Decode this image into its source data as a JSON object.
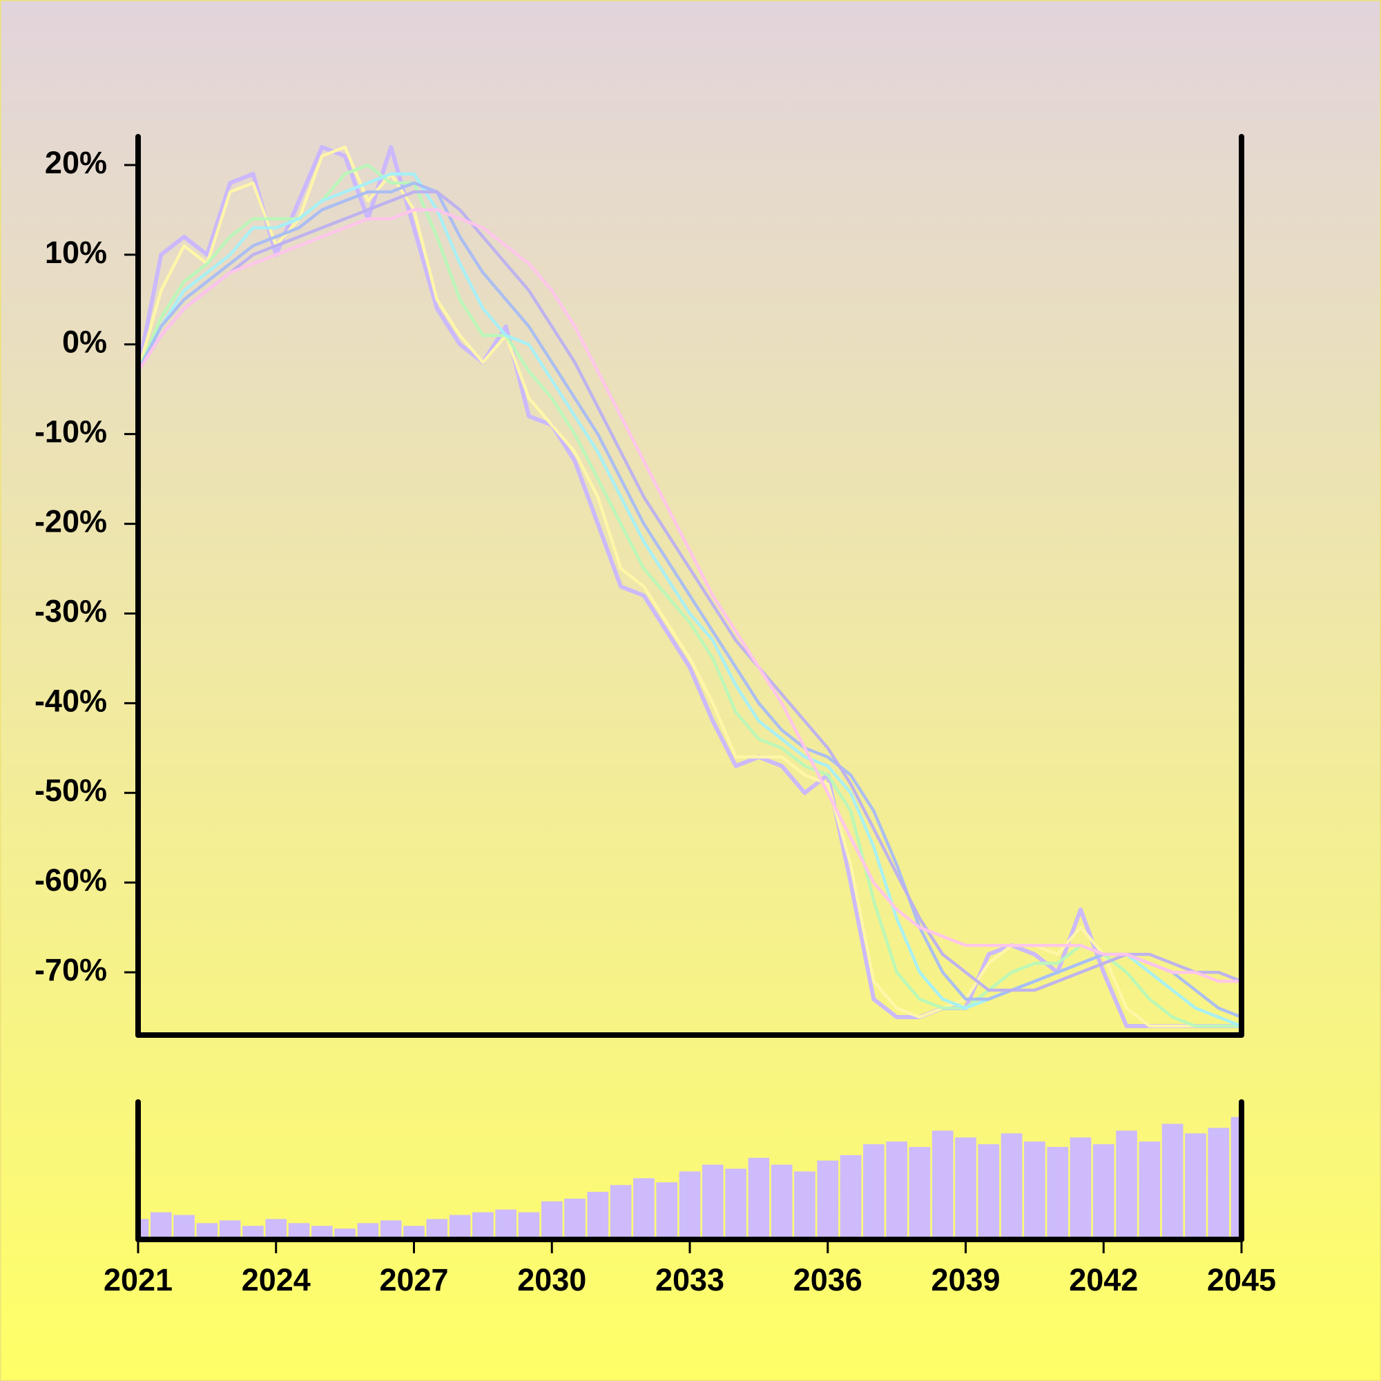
{
  "chart_data": [
    {
      "type": "line",
      "x": [
        2021,
        2021.5,
        2022,
        2022.5,
        2023,
        2023.5,
        2024,
        2024.5,
        2025,
        2025.5,
        2026,
        2026.5,
        2027,
        2027.5,
        2028,
        2028.5,
        2029,
        2029.5,
        2030,
        2030.5,
        2031,
        2031.5,
        2032,
        2032.5,
        2033,
        2033.5,
        2034,
        2034.5,
        2035,
        2035.5,
        2036,
        2036.5,
        2037,
        2037.5,
        2038,
        2038.5,
        2039,
        2039.5,
        2040,
        2040.5,
        2041,
        2041.5,
        2042,
        2042.5,
        2043,
        2043.5,
        2044,
        2044.5,
        2045
      ],
      "xlim": [
        2021,
        2045
      ],
      "ylim": [
        -77,
        23
      ],
      "yticks": [
        {
          "value": 20,
          "label": "20%"
        },
        {
          "value": 10,
          "label": "10%"
        },
        {
          "value": 0,
          "label": "0%"
        },
        {
          "value": -10,
          "label": "-10%"
        },
        {
          "value": -20,
          "label": "-20%"
        },
        {
          "value": -30,
          "label": "-30%"
        },
        {
          "value": -40,
          "label": "-40%"
        },
        {
          "value": -50,
          "label": "-50%"
        },
        {
          "value": -60,
          "label": "-60%"
        },
        {
          "value": -70,
          "label": "-70%"
        }
      ],
      "series": [
        {
          "color": "#c9b6ff",
          "values": [
            -3,
            10,
            12,
            10,
            18,
            19,
            10,
            16,
            22,
            21,
            14,
            22,
            13,
            4,
            0,
            -2,
            2,
            -8,
            -9,
            -13,
            -20,
            -27,
            -28,
            -32,
            -36,
            -42,
            -47,
            -46,
            -47,
            -50,
            -48,
            -60,
            -73,
            -75,
            -75,
            -74,
            -74,
            -68,
            -67,
            -68,
            -70,
            -63,
            -70,
            -76,
            -76,
            -76,
            -76,
            -76,
            -76
          ]
        },
        {
          "color": "#fff7a8",
          "values": [
            -3,
            6,
            11,
            9,
            17,
            18,
            11,
            14,
            21,
            22,
            16,
            19,
            15,
            5,
            1,
            -2,
            1,
            -6,
            -9,
            -12,
            -17,
            -25,
            -27,
            -31,
            -35,
            -40,
            -46,
            -46,
            -46,
            -48,
            -49,
            -58,
            -71,
            -74,
            -75,
            -74,
            -73,
            -69,
            -67,
            -67,
            -68,
            -65,
            -68,
            -74,
            -76,
            -76,
            -76,
            -76,
            -76
          ]
        },
        {
          "color": "#b8f8b8",
          "values": [
            -3,
            3,
            7,
            9,
            12,
            14,
            14,
            14,
            16,
            19,
            20,
            18,
            18,
            12,
            5,
            1,
            1,
            -3,
            -6,
            -10,
            -15,
            -20,
            -25,
            -28,
            -31,
            -35,
            -41,
            -44,
            -45,
            -47,
            -48,
            -52,
            -62,
            -70,
            -73,
            -74,
            -74,
            -72,
            -70,
            -69,
            -69,
            -67,
            -68,
            -70,
            -73,
            -75,
            -76,
            -76,
            -76
          ]
        },
        {
          "color": "#a4f0f8",
          "values": [
            -3,
            2,
            6,
            8,
            10,
            13,
            13,
            14,
            16,
            17,
            18,
            19,
            19,
            15,
            9,
            4,
            1,
            0,
            -4,
            -8,
            -12,
            -17,
            -22,
            -26,
            -30,
            -33,
            -38,
            -42,
            -44,
            -46,
            -47,
            -50,
            -56,
            -64,
            -70,
            -73,
            -74,
            -73,
            -72,
            -71,
            -70,
            -69,
            -68,
            -68,
            -70,
            -72,
            -74,
            -75,
            -76
          ]
        },
        {
          "color": "#a8bcf4",
          "values": [
            -3,
            2,
            5,
            7,
            9,
            11,
            12,
            13,
            15,
            16,
            17,
            17,
            18,
            17,
            12,
            8,
            5,
            2,
            -2,
            -6,
            -10,
            -15,
            -20,
            -24,
            -28,
            -32,
            -36,
            -40,
            -43,
            -45,
            -46,
            -48,
            -52,
            -58,
            -65,
            -70,
            -73,
            -73,
            -72,
            -71,
            -70,
            -69,
            -68,
            -68,
            -69,
            -70,
            -72,
            -74,
            -75
          ]
        },
        {
          "color": "#bcb0f0",
          "values": [
            -3,
            1,
            4,
            6,
            8,
            10,
            11,
            12,
            13,
            14,
            15,
            16,
            17,
            17,
            15,
            12,
            9,
            6,
            2,
            -2,
            -7,
            -12,
            -17,
            -21,
            -25,
            -29,
            -33,
            -36,
            -39,
            -42,
            -45,
            -49,
            -54,
            -59,
            -64,
            -68,
            -70,
            -72,
            -72,
            -72,
            -71,
            -70,
            -69,
            -68,
            -68,
            -69,
            -70,
            -70,
            -71
          ]
        },
        {
          "color": "#ffc4ec",
          "values": [
            -3,
            1,
            4,
            6,
            8,
            9,
            10,
            11,
            12,
            13,
            14,
            14,
            15,
            15,
            14,
            13,
            11,
            9,
            6,
            2,
            -3,
            -8,
            -13,
            -18,
            -23,
            -28,
            -32,
            -36,
            -40,
            -45,
            -50,
            -55,
            -60,
            -63,
            -65,
            -66,
            -67,
            -67,
            -67,
            -67,
            -67,
            -67,
            -68,
            -68,
            -69,
            -70,
            -70,
            -71,
            -71
          ]
        }
      ]
    },
    {
      "type": "bar",
      "x": [
        2021,
        2021.5,
        2022,
        2022.5,
        2023,
        2023.5,
        2024,
        2024.5,
        2025,
        2025.5,
        2026,
        2026.5,
        2027,
        2027.5,
        2028,
        2028.5,
        2029,
        2029.5,
        2030,
        2030.5,
        2031,
        2031.5,
        2032,
        2032.5,
        2033,
        2033.5,
        2034,
        2034.5,
        2035,
        2035.5,
        2036,
        2036.5,
        2037,
        2037.5,
        2038,
        2038.5,
        2039,
        2039.5,
        2040,
        2040.5,
        2041,
        2041.5,
        2042,
        2042.5,
        2043,
        2043.5,
        2044,
        2044.5,
        2045
      ],
      "values": [
        15,
        20,
        18,
        12,
        14,
        10,
        15,
        12,
        10,
        8,
        12,
        14,
        10,
        15,
        18,
        20,
        22,
        20,
        28,
        30,
        35,
        40,
        45,
        42,
        50,
        55,
        52,
        60,
        55,
        50,
        58,
        62,
        70,
        72,
        68,
        80,
        75,
        70,
        78,
        72,
        68,
        75,
        70,
        80,
        72,
        85,
        78,
        82,
        90
      ],
      "color": "#cdbbfc",
      "xlim": [
        2021,
        2045
      ],
      "ylim": [
        0,
        100
      ],
      "xticks": [
        2021,
        2024,
        2027,
        2030,
        2033,
        2036,
        2039,
        2042,
        2045
      ]
    }
  ]
}
